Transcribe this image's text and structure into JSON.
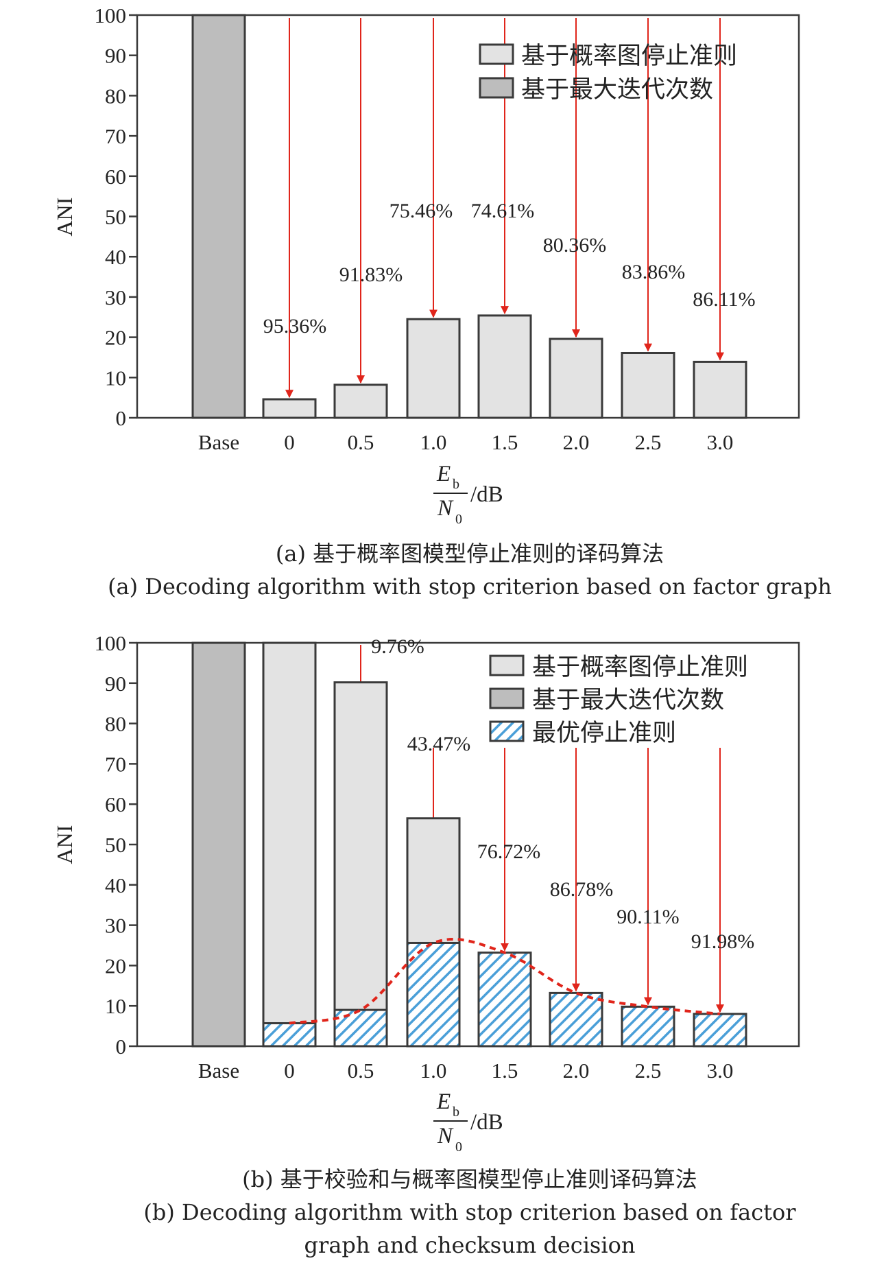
{
  "colors": {
    "probability_bar": "#e3e3e3",
    "max_iter_bar": "#bdbdbd",
    "optimal_hatch": "#4a9fd8",
    "arrow": "#e0251b",
    "frame": "#3a3a3a"
  },
  "panel_a": {
    "caption_cn": "(a) 基于概率图模型停止准则的译码算法",
    "caption_en": "(a) Decoding algorithm with stop criterion based on factor graph",
    "xlabel_num": "E",
    "xlabel_num_sub": "b",
    "xlabel_den": "N",
    "xlabel_den_sub": "0",
    "xlabel_unit": "/dB"
  },
  "panel_b": {
    "caption_cn": "(b) 基于校验和与概率图模型停止准则译码算法",
    "caption_en_line1": "(b) Decoding algorithm with stop criterion based on factor",
    "caption_en_line2": "graph and checksum decision",
    "xlabel_num": "E",
    "xlabel_num_sub": "b",
    "xlabel_den": "N",
    "xlabel_den_sub": "0",
    "xlabel_unit": "/dB"
  },
  "chart_data": [
    {
      "type": "bar",
      "ylabel": "ANI",
      "ylim": [
        0,
        100
      ],
      "yticks": [
        "0",
        "10",
        "20",
        "30",
        "40",
        "50",
        "60",
        "70",
        "80",
        "90",
        "100"
      ],
      "categories": [
        "Base",
        "0",
        "0.5",
        "1.0",
        "1.5",
        "2.0",
        "2.5",
        "3.0"
      ],
      "legend_position": "top-right",
      "series": [
        {
          "name": "基于概率图停止准则",
          "values": [
            null,
            4.6,
            8.2,
            24.5,
            25.4,
            19.6,
            16.1,
            13.9
          ]
        },
        {
          "name": "基于最大迭代次数",
          "values": [
            100,
            null,
            null,
            null,
            null,
            null,
            null,
            null
          ]
        }
      ],
      "annotations": [
        "95.36%",
        "91.83%",
        "75.46%",
        "74.61%",
        "80.36%",
        "83.86%",
        "86.11%"
      ]
    },
    {
      "type": "bar",
      "ylabel": "ANI",
      "ylim": [
        0,
        100
      ],
      "yticks": [
        "0",
        "10",
        "20",
        "30",
        "40",
        "50",
        "60",
        "70",
        "80",
        "90",
        "100"
      ],
      "categories": [
        "Base",
        "0",
        "0.5",
        "1.0",
        "1.5",
        "2.0",
        "2.5",
        "3.0"
      ],
      "legend_position": "top-right",
      "series": [
        {
          "name": "基于概率图停止准则",
          "values": [
            null,
            100,
            90.2,
            56.5,
            null,
            null,
            null,
            null
          ]
        },
        {
          "name": "基于最大迭代次数",
          "values": [
            100,
            null,
            null,
            null,
            null,
            null,
            null,
            null
          ]
        },
        {
          "name": "最优停止准则",
          "values": [
            null,
            5.7,
            9.0,
            25.6,
            23.2,
            13.2,
            9.8,
            8.0
          ]
        }
      ],
      "annotations": [
        "9.76%",
        "43.47%",
        "76.72%",
        "86.78%",
        "90.11%",
        "91.98%"
      ]
    }
  ]
}
